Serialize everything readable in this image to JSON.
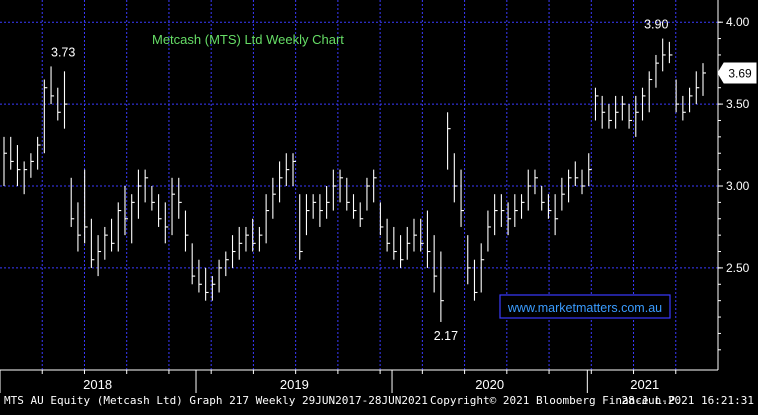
{
  "chart_data": {
    "type": "bar",
    "subtype": "weekly-hlc",
    "title": "Metcash (MTS) Ltd Weekly Chart",
    "ylim": [
      1.95,
      4.05
    ],
    "y_ticks": [
      {
        "value": 4.0,
        "label": "4.00"
      },
      {
        "value": 3.5,
        "label": "3.50"
      },
      {
        "value": 3.0,
        "label": "3.00"
      },
      {
        "value": 2.5,
        "label": "2.50"
      }
    ],
    "x_year_labels": [
      {
        "label": "2018",
        "pos": 0.136
      },
      {
        "label": "2019",
        "pos": 0.41
      },
      {
        "label": "2020",
        "pos": 0.682
      },
      {
        "label": "2021",
        "pos": 0.898
      }
    ],
    "last_price": {
      "value": 3.69,
      "label": "3.69"
    },
    "annotations": [
      {
        "text": "3.73",
        "value": 3.73,
        "pos": 0.088
      },
      {
        "text": "3.90",
        "value": 3.9,
        "pos": 0.914
      },
      {
        "text": "2.17",
        "value": 2.17,
        "pos": 0.621
      }
    ],
    "url_box": "www.marketmatters.com.au",
    "series": [
      {
        "points": [
          [
            3.0,
            3.3,
            3.2
          ],
          [
            3.1,
            3.3,
            3.15
          ],
          [
            3.0,
            3.25,
            3.1
          ],
          [
            2.95,
            3.15,
            3.1
          ],
          [
            3.05,
            3.2,
            3.15
          ],
          [
            3.1,
            3.3,
            3.25
          ],
          [
            3.2,
            3.65,
            3.6
          ],
          [
            3.5,
            3.73,
            3.55
          ],
          [
            3.4,
            3.6,
            3.45
          ],
          [
            3.35,
            3.7,
            3.5
          ],
          [
            2.75,
            3.05,
            2.8
          ],
          [
            2.6,
            2.9,
            2.7
          ],
          [
            2.65,
            3.1,
            2.75
          ],
          [
            2.5,
            2.8,
            2.55
          ],
          [
            2.45,
            2.7,
            2.6
          ],
          [
            2.55,
            2.75,
            2.7
          ],
          [
            2.6,
            2.8,
            2.65
          ],
          [
            2.6,
            2.9,
            2.85
          ],
          [
            2.7,
            3.0,
            2.8
          ],
          [
            2.65,
            2.95,
            2.9
          ],
          [
            2.8,
            3.1,
            3.0
          ],
          [
            2.9,
            3.1,
            3.05
          ],
          [
            2.85,
            3.0,
            2.9
          ],
          [
            2.75,
            2.95,
            2.8
          ],
          [
            2.65,
            2.9,
            2.75
          ],
          [
            2.7,
            3.05,
            2.95
          ],
          [
            2.8,
            3.05,
            2.9
          ],
          [
            2.6,
            2.85,
            2.7
          ],
          [
            2.4,
            2.65,
            2.45
          ],
          [
            2.35,
            2.55,
            2.4
          ],
          [
            2.3,
            2.5,
            2.35
          ],
          [
            2.3,
            2.45,
            2.4
          ],
          [
            2.35,
            2.55,
            2.5
          ],
          [
            2.45,
            2.6,
            2.55
          ],
          [
            2.5,
            2.7,
            2.6
          ],
          [
            2.55,
            2.75,
            2.65
          ],
          [
            2.6,
            2.75,
            2.7
          ],
          [
            2.6,
            2.8,
            2.65
          ],
          [
            2.6,
            2.75,
            2.7
          ],
          [
            2.65,
            2.95,
            2.85
          ],
          [
            2.8,
            3.05,
            2.95
          ],
          [
            2.9,
            3.15,
            3.05
          ],
          [
            3.0,
            3.2,
            3.1
          ],
          [
            3.0,
            3.2,
            3.15
          ],
          [
            2.55,
            2.95,
            2.6
          ],
          [
            2.7,
            2.95,
            2.85
          ],
          [
            2.8,
            2.95,
            2.9
          ],
          [
            2.75,
            2.95,
            2.85
          ],
          [
            2.8,
            3.0,
            2.9
          ],
          [
            2.85,
            3.1,
            3.0
          ],
          [
            2.9,
            3.1,
            3.05
          ],
          [
            2.85,
            3.05,
            2.9
          ],
          [
            2.8,
            2.95,
            2.85
          ],
          [
            2.75,
            2.9,
            2.8
          ],
          [
            2.85,
            3.05,
            3.0
          ],
          [
            2.9,
            3.1,
            3.05
          ],
          [
            2.7,
            2.9,
            2.75
          ],
          [
            2.6,
            2.8,
            2.65
          ],
          [
            2.55,
            2.75,
            2.6
          ],
          [
            2.5,
            2.7,
            2.55
          ],
          [
            2.55,
            2.75,
            2.65
          ],
          [
            2.6,
            2.8,
            2.7
          ],
          [
            2.6,
            2.8,
            2.65
          ],
          [
            2.5,
            2.85,
            2.6
          ],
          [
            2.35,
            2.7,
            2.45
          ],
          [
            2.17,
            2.6,
            2.3
          ],
          [
            3.1,
            3.45,
            3.35
          ],
          [
            2.9,
            3.2,
            3.0
          ],
          [
            2.75,
            3.1,
            2.85
          ],
          [
            2.4,
            2.7,
            2.5
          ],
          [
            2.3,
            2.55,
            2.35
          ],
          [
            2.35,
            2.65,
            2.55
          ],
          [
            2.6,
            2.85,
            2.75
          ],
          [
            2.7,
            2.95,
            2.85
          ],
          [
            2.75,
            2.95,
            2.85
          ],
          [
            2.7,
            2.9,
            2.8
          ],
          [
            2.75,
            2.95,
            2.85
          ],
          [
            2.8,
            2.95,
            2.9
          ],
          [
            2.85,
            3.1,
            3.0
          ],
          [
            2.95,
            3.1,
            3.05
          ],
          [
            2.85,
            3.0,
            2.9
          ],
          [
            2.8,
            2.95,
            2.85
          ],
          [
            2.7,
            2.95,
            2.8
          ],
          [
            2.85,
            3.05,
            2.95
          ],
          [
            2.9,
            3.1,
            3.05
          ],
          [
            3.0,
            3.15,
            3.05
          ],
          [
            2.95,
            3.1,
            3.0
          ],
          [
            3.0,
            3.2,
            3.1
          ],
          [
            3.4,
            3.6,
            3.55
          ],
          [
            3.35,
            3.55,
            3.45
          ],
          [
            3.35,
            3.5,
            3.4
          ],
          [
            3.35,
            3.55,
            3.45
          ],
          [
            3.4,
            3.55,
            3.5
          ],
          [
            3.35,
            3.5,
            3.4
          ],
          [
            3.3,
            3.55,
            3.45
          ],
          [
            3.4,
            3.6,
            3.55
          ],
          [
            3.45,
            3.7,
            3.65
          ],
          [
            3.6,
            3.8,
            3.75
          ],
          [
            3.7,
            3.9,
            3.8
          ],
          [
            3.75,
            3.88,
            3.8
          ],
          [
            3.45,
            3.65,
            3.5
          ],
          [
            3.4,
            3.55,
            3.45
          ],
          [
            3.45,
            3.6,
            3.55
          ],
          [
            3.5,
            3.7,
            3.6
          ],
          [
            3.55,
            3.75,
            3.69
          ]
        ]
      }
    ]
  },
  "footer": {
    "left": "MTS AU Equity (Metcash Ltd) Graph 217  Weekly 29JUN2017-28JUN2021",
    "center": "Copyright© 2021 Bloomberg Finance L.P.",
    "right": "28-Jun-2021 16:21:31"
  },
  "colors": {
    "background": "#000000",
    "grid": "#3a3aff",
    "bars": "#ffffff",
    "title": "#66dd66",
    "url_box_border": "#3a3aff",
    "url_box_text": "#3a9cff",
    "axis_text": "#ffffff",
    "footer_text": "#ffffff"
  }
}
